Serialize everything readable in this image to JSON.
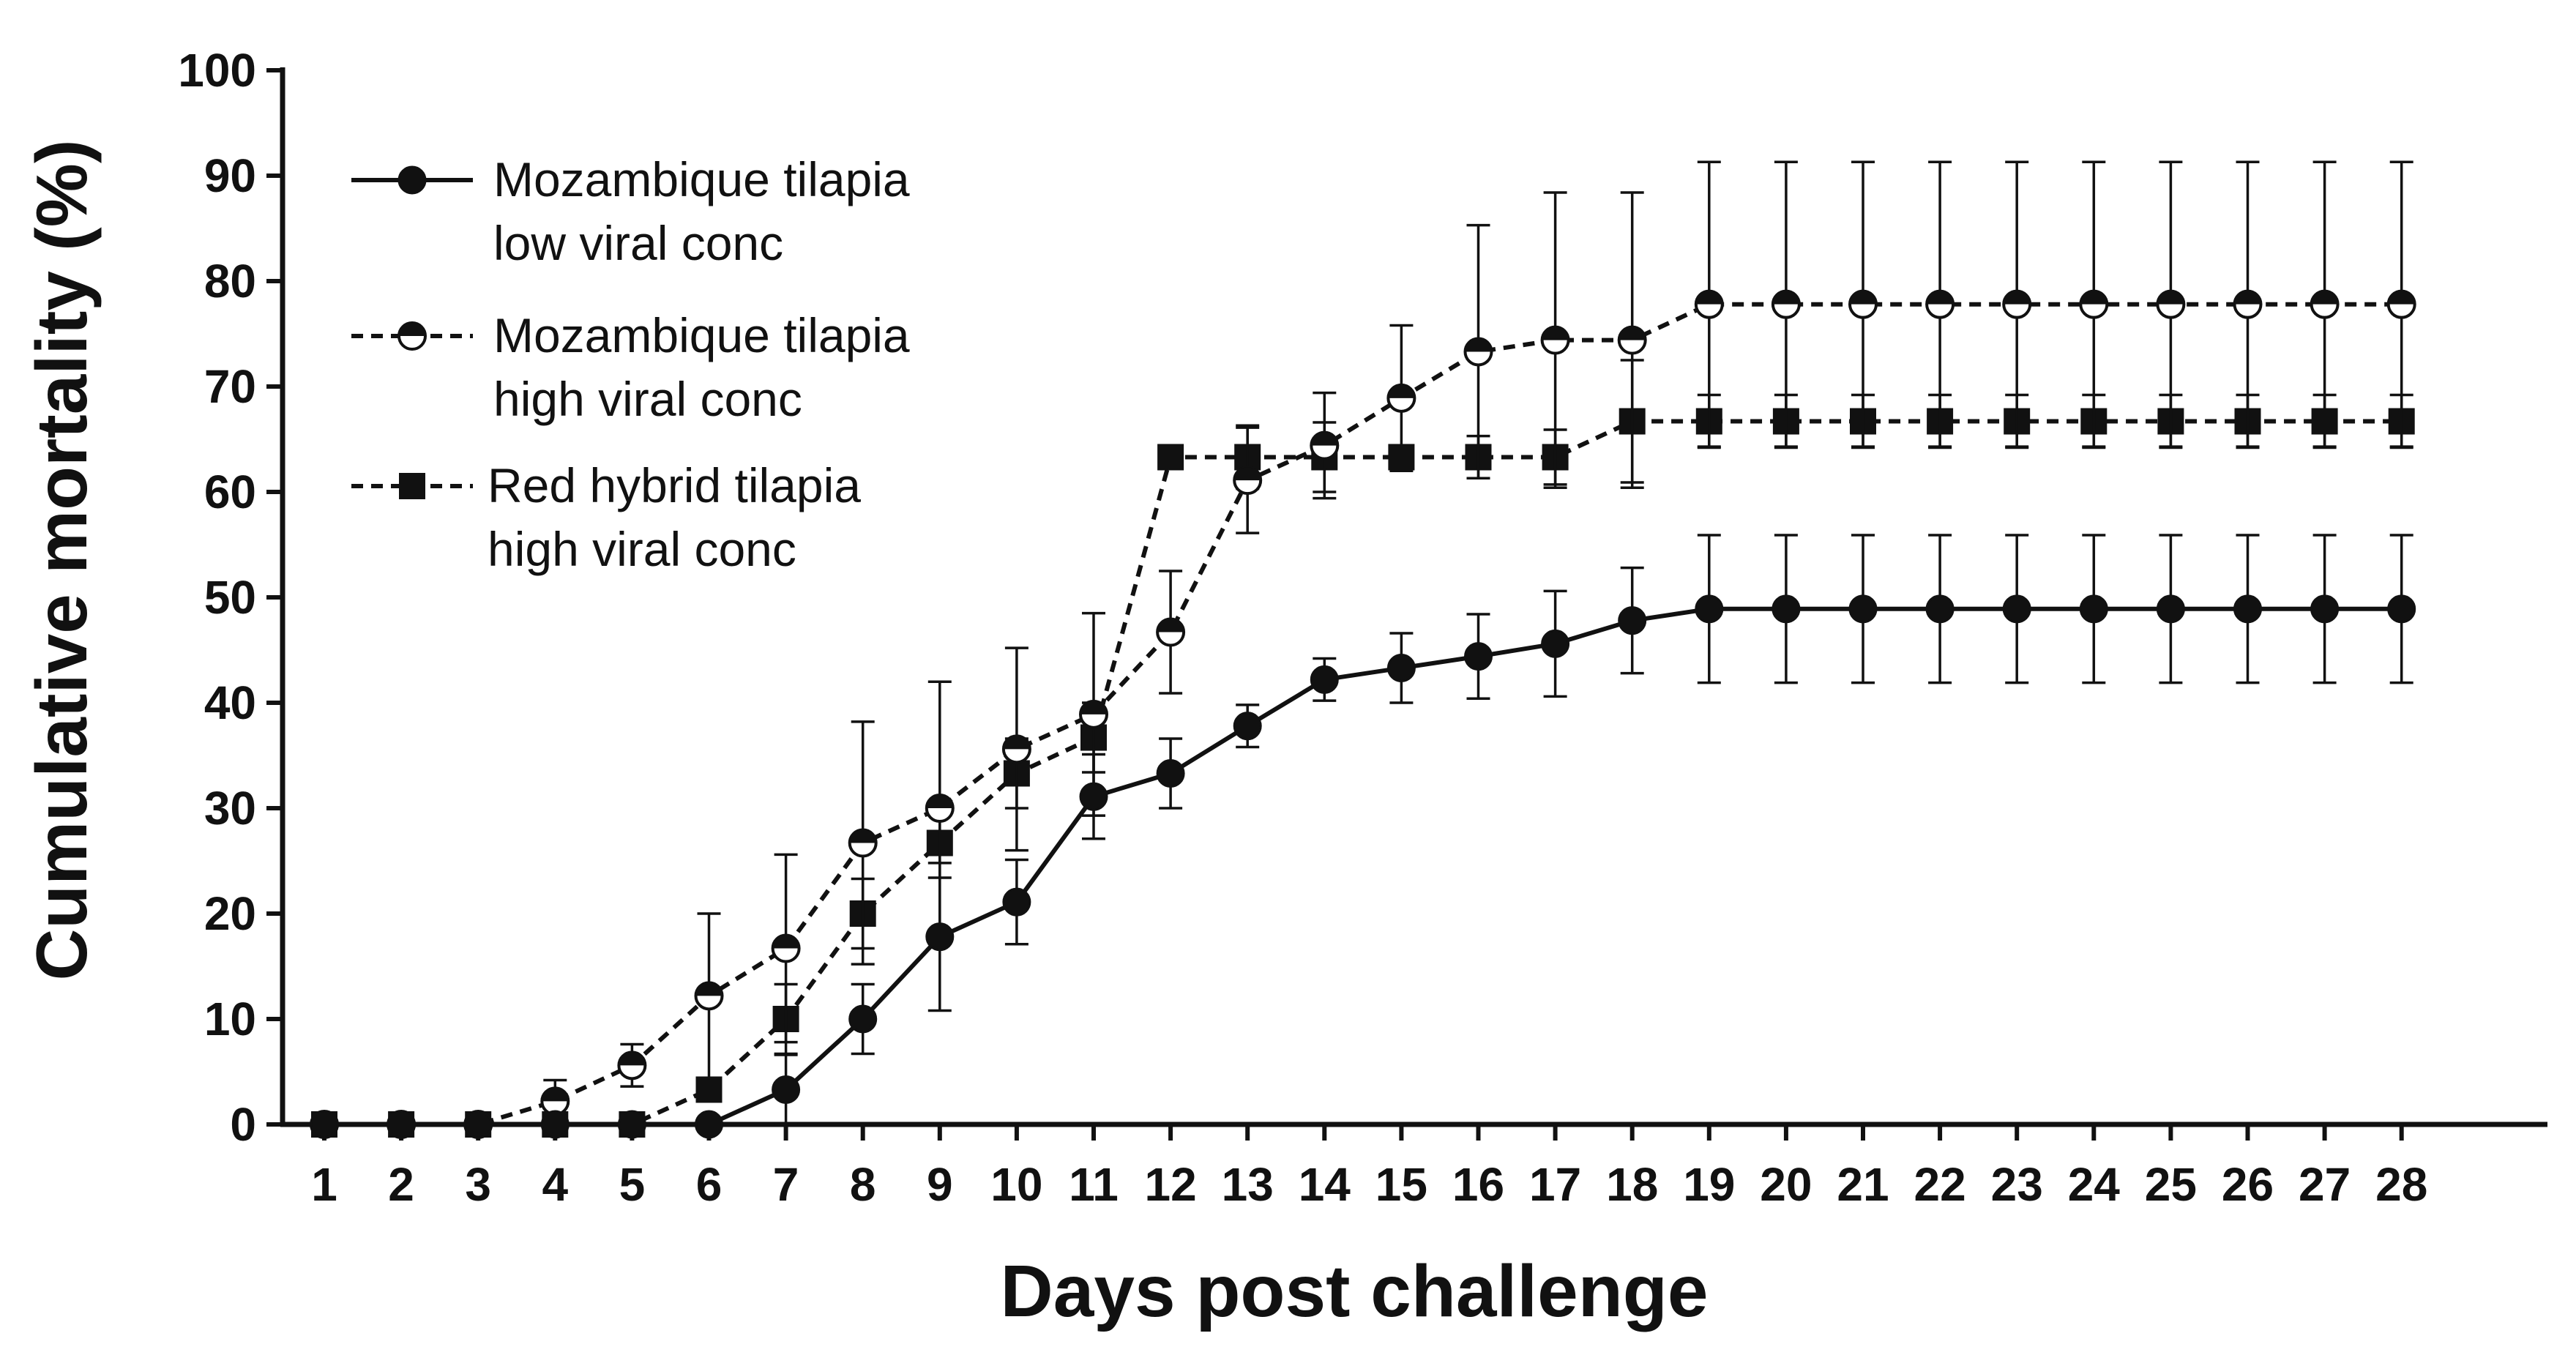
{
  "chart_data": {
    "type": "line",
    "xlabel": "Days post challenge",
    "ylabel": "Cumulative mortality (%)",
    "ylim": [
      0,
      100
    ],
    "yticks": [
      0,
      10,
      20,
      30,
      40,
      50,
      60,
      70,
      80,
      90,
      100
    ],
    "x": [
      1,
      2,
      3,
      4,
      5,
      6,
      7,
      8,
      9,
      10,
      11,
      12,
      13,
      14,
      15,
      16,
      17,
      18,
      19,
      20,
      21,
      22,
      23,
      24,
      25,
      26,
      27,
      28
    ],
    "legend_position": "top-left",
    "error_bars": "one-sided (upward)",
    "series": [
      {
        "name_lines": [
          "Mozambique tilapia",
          "low viral conc"
        ],
        "line": "solid",
        "marker": "filled-circle",
        "values": [
          0,
          0,
          0,
          0,
          0,
          0,
          3.3,
          10,
          17.8,
          21.1,
          31.1,
          33.3,
          37.8,
          42.2,
          43.3,
          44.4,
          45.6,
          47.8,
          48.9,
          48.9,
          48.9,
          48.9,
          48.9,
          48.9,
          48.9,
          48.9,
          48.9,
          48.9
        ],
        "errors": [
          0,
          0,
          0,
          0,
          0,
          0,
          3.3,
          3.3,
          7,
          4,
          4,
          3.3,
          2,
          2,
          3.3,
          4,
          5,
          5,
          7,
          7,
          7,
          7,
          7,
          7,
          7,
          7,
          7,
          7
        ]
      },
      {
        "name_lines": [
          "Mozambique tilapia",
          "high viral conc"
        ],
        "line": "dashed",
        "marker": "half-filled-circle",
        "values": [
          0,
          0,
          0,
          2.2,
          5.6,
          12.2,
          16.7,
          26.7,
          30,
          35.6,
          38.9,
          46.7,
          61.1,
          64.4,
          68.9,
          73.3,
          74.4,
          74.4,
          77.8,
          77.8,
          77.8,
          77.8,
          77.8,
          77.8,
          77.8,
          77.8,
          77.8,
          77.8
        ],
        "errors": [
          0,
          0,
          0,
          2,
          2,
          7.8,
          8.9,
          11.5,
          12,
          9.6,
          9.6,
          5.8,
          5,
          5,
          6.9,
          12,
          14,
          14,
          13.5,
          13.5,
          13.5,
          13.5,
          13.5,
          13.5,
          13.5,
          13.5,
          13.5,
          13.5
        ]
      },
      {
        "name_lines": [
          "Red hybrid tilapia",
          "high viral conc"
        ],
        "line": "dashed",
        "marker": "filled-square",
        "values": [
          0,
          0,
          0,
          0,
          0,
          3.3,
          10,
          20,
          26.7,
          33.3,
          36.7,
          63.3,
          63.3,
          63.3,
          63.3,
          63.3,
          63.3,
          66.7,
          66.7,
          66.7,
          66.7,
          66.7,
          66.7,
          66.7,
          66.7,
          66.7,
          66.7,
          66.7
        ],
        "errors": [
          0,
          0,
          0,
          0,
          0,
          0,
          3.3,
          3.3,
          3.3,
          3.3,
          3.3,
          0,
          3,
          3.3,
          1,
          2,
          2.6,
          5.8,
          2.5,
          2.5,
          2.5,
          2.5,
          2.5,
          2.5,
          2.5,
          2.5,
          2.5,
          2.5
        ]
      }
    ]
  }
}
